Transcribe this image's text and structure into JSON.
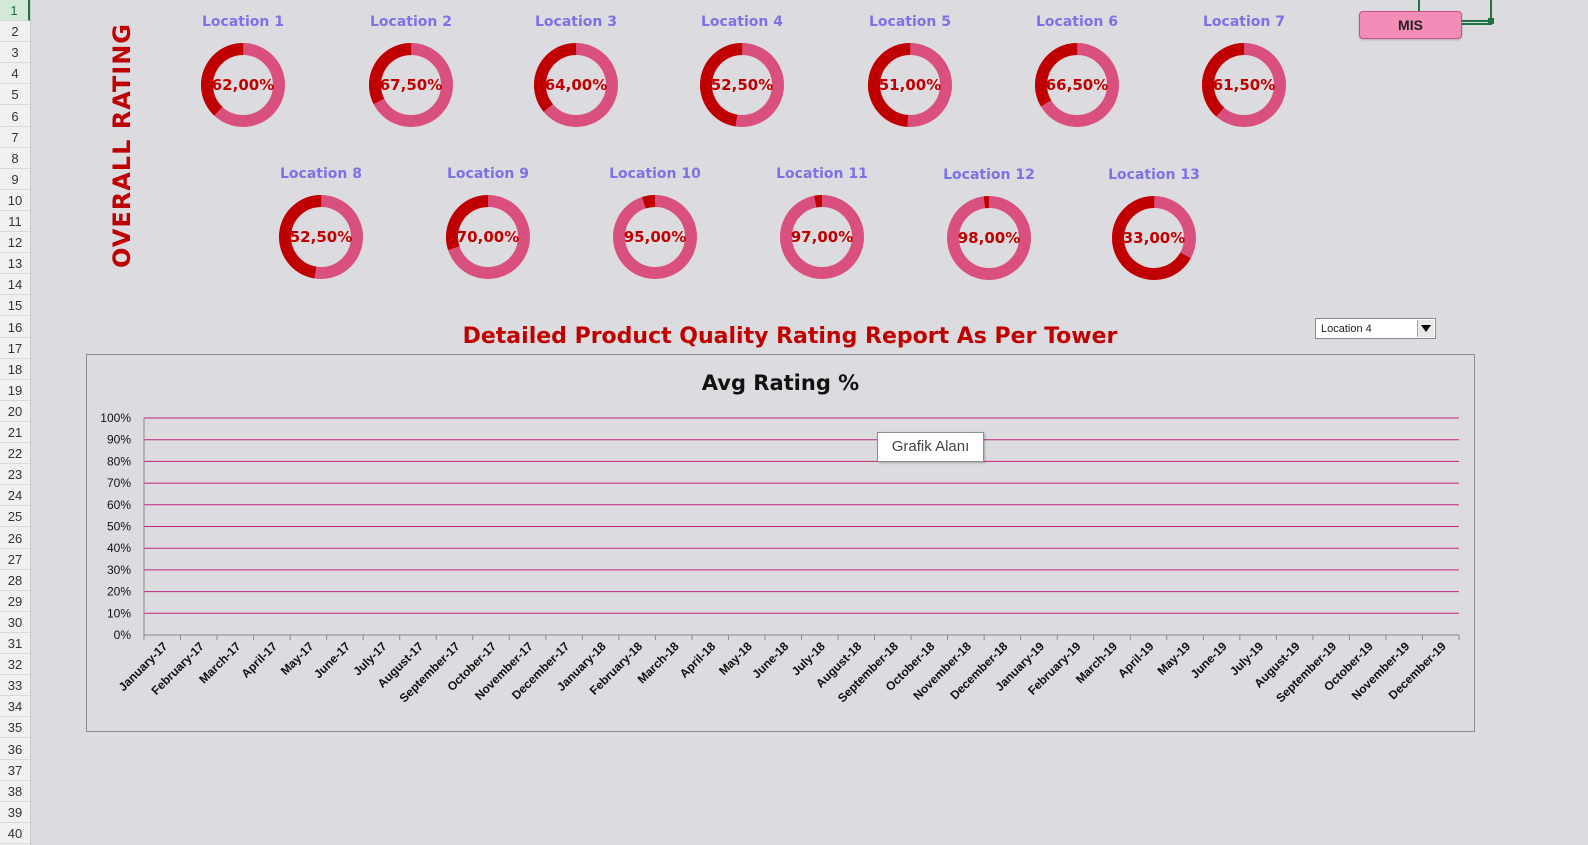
{
  "row_numbers": [
    "1",
    "2",
    "3",
    "4",
    "5",
    "6",
    "7",
    "8",
    "9",
    "10",
    "11",
    "12",
    "13",
    "14",
    "15",
    "16",
    "17",
    "18",
    "19",
    "20",
    "21",
    "22",
    "23",
    "24",
    "25",
    "26",
    "27",
    "28",
    "29",
    "30",
    "31",
    "32",
    "33",
    "34",
    "35",
    "36",
    "37",
    "38",
    "39",
    "40"
  ],
  "overall_label": "OVERALL RATING",
  "colors": {
    "ring_filled": "#c00000",
    "ring_remaining": "#d9507e",
    "label_text": "#7b72e6",
    "accent_red": "#c00000",
    "gridline": "#c0237a",
    "mis_button_bg": "#f38db8"
  },
  "locations": [
    {
      "name": "Location 1",
      "pct_text": "62,00%",
      "pct": 62.0
    },
    {
      "name": "Location 2",
      "pct_text": "67,50%",
      "pct": 67.5
    },
    {
      "name": "Location 3",
      "pct_text": "64,00%",
      "pct": 64.0
    },
    {
      "name": "Location 4",
      "pct_text": "52,50%",
      "pct": 52.5
    },
    {
      "name": "Location 5",
      "pct_text": "51,00%",
      "pct": 51.0
    },
    {
      "name": "Location 6",
      "pct_text": "66,50%",
      "pct": 66.5
    },
    {
      "name": "Location 7",
      "pct_text": "61,50%",
      "pct": 61.5
    },
    {
      "name": "Location 8",
      "pct_text": "52,50%",
      "pct": 52.5
    },
    {
      "name": "Location 9",
      "pct_text": "70,00%",
      "pct": 70.0
    },
    {
      "name": "Location 10",
      "pct_text": "95,00%",
      "pct": 95.0
    },
    {
      "name": "Location 11",
      "pct_text": "97,00%",
      "pct": 97.0
    },
    {
      "name": "Location 12",
      "pct_text": "98,00%",
      "pct": 98.0
    },
    {
      "name": "Location 13",
      "pct_text": "33,00%",
      "pct": 33.0
    }
  ],
  "mis_button": "MIS",
  "report_title": "Detailed Product Quality Rating Report As Per Tower",
  "location_dropdown": {
    "selected": "Location 4"
  },
  "tooltip": "Grafik Alanı",
  "chart_data": {
    "type": "line",
    "title": "Avg Rating %",
    "xlabel": "",
    "ylabel": "",
    "ylim": [
      0,
      100
    ],
    "y_ticks": [
      "0%",
      "10%",
      "20%",
      "30%",
      "40%",
      "50%",
      "60%",
      "70%",
      "80%",
      "90%",
      "100%"
    ],
    "categories": [
      "January-17",
      "February-17",
      "March-17",
      "April-17",
      "May-17",
      "June-17",
      "July-17",
      "August-17",
      "September-17",
      "October-17",
      "November-17",
      "December-17",
      "January-18",
      "February-18",
      "March-18",
      "April-18",
      "May-18",
      "June-18",
      "July-18",
      "August-18",
      "September-18",
      "October-18",
      "November-18",
      "December-18",
      "January-19",
      "February-19",
      "March-19",
      "April-19",
      "May-19",
      "June-19",
      "July-19",
      "August-19",
      "September-19",
      "October-19",
      "November-19",
      "December-19"
    ],
    "series": [],
    "grid": true,
    "legend": "none"
  }
}
